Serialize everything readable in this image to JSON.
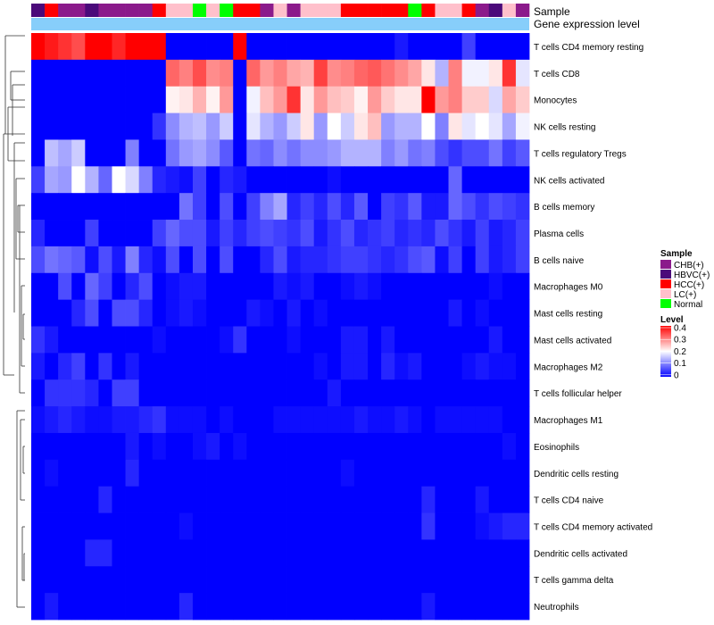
{
  "chart_data": {
    "type": "heatmap",
    "title": "",
    "annotation_labels": {
      "sample": "Sample",
      "expression": "Gene expression level"
    },
    "rows": [
      "T cells CD4 memory resting",
      "T cells CD8",
      "Monocytes",
      "NK cells resting",
      "T cells regulatory  Tregs",
      "NK cells activated",
      "B cells memory",
      "Plasma cells",
      "B cells naive",
      "Macrophages M0",
      "Mast cells resting",
      "Mast cells activated",
      "Macrophages M2",
      "T cells follicular helper",
      "Macrophages M1",
      "Eosinophils",
      "Dendritic cells resting",
      "T cells CD4 naive",
      "T cells CD4 memory activated",
      "Dendritic cells activated",
      "T cells gamma delta",
      "Neutrophils"
    ],
    "sample_groups": [
      "HBVC(+)",
      "HCC(+)",
      "CHB(+)",
      "CHB(+)",
      "HBVC(+)",
      "CHB(+)",
      "CHB(+)",
      "CHB(+)",
      "CHB(+)",
      "HCC(+)",
      "LC(+)",
      "LC(+)",
      "Normal",
      "LC(+)",
      "Normal",
      "HCC(+)",
      "HCC(+)",
      "CHB(+)",
      "LC(+)",
      "CHB(+)",
      "LC(+)",
      "LC(+)",
      "LC(+)",
      "HCC(+)",
      "HCC(+)",
      "HCC(+)",
      "HCC(+)",
      "HCC(+)",
      "Normal",
      "HCC(+)",
      "LC(+)",
      "LC(+)",
      "HCC(+)",
      "CHB(+)",
      "HBVC(+)",
      "LC(+)",
      "CHB(+)"
    ],
    "values": [
      [
        0.4,
        0.38,
        0.36,
        0.34,
        0.4,
        0.4,
        0.37,
        0.4,
        0.4,
        0.4,
        0,
        0,
        0,
        0,
        0,
        0.4,
        0,
        0,
        0,
        0,
        0,
        0,
        0,
        0,
        0,
        0,
        0,
        0.02,
        0,
        0,
        0,
        0,
        0.05,
        0,
        0,
        0,
        0
      ],
      [
        0,
        0,
        0,
        0,
        0,
        0,
        0,
        0,
        0,
        0,
        0.32,
        0.3,
        0.34,
        0.29,
        0.3,
        0,
        0.32,
        0.28,
        0.3,
        0.27,
        0.26,
        0.35,
        0.29,
        0.3,
        0.32,
        0.33,
        0.31,
        0.29,
        0.27,
        0.22,
        0.14,
        0.3,
        0.19,
        0.19,
        0.22,
        0.36,
        0.18
      ],
      [
        0,
        0,
        0,
        0,
        0,
        0,
        0,
        0,
        0,
        0,
        0.21,
        0.22,
        0.26,
        0.21,
        0.28,
        0,
        0.19,
        0.25,
        0.28,
        0.36,
        0.22,
        0.28,
        0.25,
        0.24,
        0.21,
        0.28,
        0.24,
        0.22,
        0.22,
        0.42,
        0.28,
        0.3,
        0.24,
        0.24,
        0.17,
        0.27,
        0.24
      ],
      [
        0,
        0,
        0,
        0,
        0,
        0,
        0,
        0,
        0,
        0.04,
        0.11,
        0.14,
        0.15,
        0.12,
        0.16,
        0,
        0.18,
        0.14,
        0.12,
        0.16,
        0.22,
        0.12,
        0.2,
        0.16,
        0.22,
        0.25,
        0.12,
        0.14,
        0.14,
        0.2,
        0.1,
        0.22,
        0.18,
        0.2,
        0.18,
        0.13,
        0.19
      ],
      [
        0,
        0.15,
        0.13,
        0.16,
        0,
        0,
        0,
        0.1,
        0,
        0,
        0.09,
        0.12,
        0.13,
        0.11,
        0.07,
        0,
        0.09,
        0.08,
        0.11,
        0.09,
        0.11,
        0.11,
        0.12,
        0.14,
        0.14,
        0.14,
        0.1,
        0.12,
        0.09,
        0.1,
        0.06,
        0.04,
        0.06,
        0.06,
        0.09,
        0.05,
        0.07
      ],
      [
        0.05,
        0.13,
        0.12,
        0.2,
        0.14,
        0.08,
        0.2,
        0.17,
        0.1,
        0.03,
        0.02,
        0.01,
        0.05,
        0,
        0.03,
        0.02,
        0,
        0,
        0,
        0,
        0,
        0,
        0.01,
        0,
        0,
        0,
        0,
        0,
        0,
        0,
        0,
        0.08,
        0,
        0,
        0,
        0,
        0
      ],
      [
        0,
        0,
        0,
        0,
        0,
        0,
        0,
        0,
        0,
        0,
        0,
        0.09,
        0.05,
        0,
        0.06,
        0,
        0.05,
        0.1,
        0.13,
        0.03,
        0.05,
        0.03,
        0.06,
        0.03,
        0.07,
        0,
        0.05,
        0.04,
        0.07,
        0.02,
        0.02,
        0.08,
        0.06,
        0.04,
        0.06,
        0.05,
        0.04
      ],
      [
        0.03,
        0,
        0,
        0,
        0.05,
        0,
        0,
        0,
        0,
        0.05,
        0.08,
        0.06,
        0.06,
        0.02,
        0.05,
        0.03,
        0.05,
        0.06,
        0.05,
        0.04,
        0.06,
        0.02,
        0.04,
        0.06,
        0.03,
        0.04,
        0.05,
        0.03,
        0.04,
        0.03,
        0.06,
        0.04,
        0.02,
        0.05,
        0.02,
        0.03,
        0.05
      ],
      [
        0.06,
        0.09,
        0.08,
        0.07,
        0.01,
        0.06,
        0.02,
        0.1,
        0.03,
        0.01,
        0.06,
        0,
        0.06,
        0,
        0.06,
        0,
        0,
        0.03,
        0.06,
        0.02,
        0.03,
        0.03,
        0.04,
        0.05,
        0.05,
        0.04,
        0.03,
        0.04,
        0.06,
        0.07,
        0.01,
        0.05,
        0,
        0.05,
        0.02,
        0.03,
        0.05
      ],
      [
        0,
        0,
        0.06,
        0,
        0.08,
        0.05,
        0,
        0.03,
        0.06,
        0,
        0.01,
        0.02,
        0.02,
        0,
        0,
        0,
        0,
        0,
        0.02,
        0.01,
        0.02,
        0,
        0,
        0.01,
        0.02,
        0.01,
        0,
        0,
        0,
        0,
        0,
        0,
        0,
        0,
        0.01,
        0,
        0
      ],
      [
        0,
        0,
        0,
        0.03,
        0.06,
        0,
        0.06,
        0.06,
        0.03,
        0,
        0.01,
        0.02,
        0.01,
        0,
        0,
        0,
        0.02,
        0.01,
        0,
        0.02,
        0,
        0.01,
        0,
        0,
        0,
        0,
        0,
        0,
        0,
        0,
        0,
        0.02,
        0,
        0.01,
        0,
        0,
        0
      ],
      [
        0.04,
        0.02,
        0,
        0,
        0,
        0,
        0,
        0,
        0,
        0.01,
        0,
        0,
        0,
        0,
        0.01,
        0.04,
        0,
        0,
        0,
        0.01,
        0,
        0,
        0,
        0.02,
        0.02,
        0,
        0.02,
        0,
        0,
        0,
        0,
        0,
        0,
        0,
        0.02,
        0,
        0
      ],
      [
        0.02,
        0,
        0.03,
        0.05,
        0,
        0.04,
        0,
        0.02,
        0,
        0,
        0,
        0,
        0,
        0,
        0,
        0,
        0,
        0,
        0,
        0,
        0,
        0.01,
        0,
        0.02,
        0.02,
        0,
        0.03,
        0.01,
        0.02,
        0,
        0,
        0,
        0.01,
        0.02,
        0.01,
        0.01,
        0
      ],
      [
        0,
        0.04,
        0.04,
        0.04,
        0.03,
        0,
        0.05,
        0.05,
        0,
        0,
        0,
        0,
        0,
        0,
        0,
        0,
        0,
        0,
        0,
        0,
        0,
        0,
        0.02,
        0,
        0,
        0,
        0,
        0,
        0,
        0,
        0,
        0,
        0,
        0,
        0,
        0,
        0
      ],
      [
        0.01,
        0.02,
        0.03,
        0.02,
        0.01,
        0.01,
        0.02,
        0.02,
        0.03,
        0.04,
        0.01,
        0.01,
        0.01,
        0,
        0.01,
        0,
        0,
        0,
        0.01,
        0.01,
        0.01,
        0.01,
        0.01,
        0.01,
        0.02,
        0.01,
        0.01,
        0.02,
        0.01,
        0,
        0.01,
        0.01,
        0.01,
        0.01,
        0.01,
        0,
        0
      ],
      [
        0,
        0,
        0,
        0,
        0,
        0,
        0,
        0.02,
        0,
        0.01,
        0,
        0,
        0.01,
        0.02,
        0,
        0.01,
        0,
        0,
        0,
        0,
        0,
        0,
        0,
        0,
        0,
        0,
        0,
        0,
        0,
        0,
        0,
        0,
        0,
        0,
        0,
        0.01,
        0
      ],
      [
        0,
        0.01,
        0,
        0,
        0,
        0,
        0,
        0.03,
        0,
        0,
        0,
        0,
        0,
        0,
        0,
        0,
        0,
        0,
        0,
        0,
        0,
        0,
        0,
        0.01,
        0,
        0,
        0,
        0,
        0,
        0,
        0,
        0,
        0,
        0,
        0,
        0,
        0
      ],
      [
        0,
        0,
        0,
        0,
        0,
        0.03,
        0,
        0,
        0,
        0,
        0,
        0,
        0,
        0,
        0,
        0,
        0,
        0,
        0,
        0,
        0,
        0,
        0,
        0,
        0,
        0,
        0,
        0,
        0,
        0.03,
        0,
        0,
        0,
        0.02,
        0,
        0,
        0
      ],
      [
        0,
        0,
        0,
        0,
        0,
        0,
        0,
        0,
        0,
        0,
        0,
        0.01,
        0,
        0,
        0,
        0,
        0,
        0,
        0,
        0,
        0,
        0,
        0,
        0,
        0,
        0,
        0,
        0,
        0,
        0.04,
        0,
        0,
        0,
        0.01,
        0.02,
        0.03,
        0.03
      ],
      [
        0,
        0,
        0,
        0,
        0.03,
        0.03,
        0,
        0,
        0,
        0,
        0,
        0,
        0,
        0,
        0,
        0,
        0,
        0,
        0,
        0,
        0,
        0,
        0,
        0,
        0,
        0,
        0,
        0,
        0,
        0,
        0,
        0,
        0,
        0,
        0,
        0,
        0
      ],
      [
        0,
        0,
        0,
        0,
        0,
        0,
        0,
        0,
        0,
        0,
        0,
        0,
        0,
        0,
        0,
        0,
        0,
        0,
        0,
        0,
        0,
        0,
        0,
        0,
        0,
        0,
        0,
        0,
        0,
        0,
        0,
        0,
        0,
        0,
        0,
        0,
        0
      ],
      [
        0,
        0.02,
        0,
        0,
        0,
        0,
        0,
        0,
        0,
        0,
        0,
        0.03,
        0,
        0,
        0,
        0,
        0,
        0,
        0,
        0,
        0,
        0,
        0,
        0,
        0,
        0,
        0,
        0,
        0,
        0.02,
        0,
        0,
        0,
        0,
        0,
        0,
        0
      ]
    ],
    "colorscale": [
      "#0000FF",
      "#FFFFFF",
      "#FF0000"
    ],
    "legend": {
      "sample_title": "Sample",
      "sample_entries": [
        {
          "label": "CHB(+)",
          "color": "#8B1A8B"
        },
        {
          "label": "HBVC(+)",
          "color": "#4B0A7A"
        },
        {
          "label": "HCC(+)",
          "color": "#FF0000"
        },
        {
          "label": "LC(+)",
          "color": "#FFC0CB"
        },
        {
          "label": "Normal",
          "color": "#00FF00"
        }
      ],
      "level_title": "Level",
      "level_ticks": [
        "0.4",
        "0.3",
        "0.2",
        "0.1",
        "0"
      ],
      "level_range": [
        0,
        0.4
      ]
    },
    "expression_bar_color": "#87CEFA"
  }
}
